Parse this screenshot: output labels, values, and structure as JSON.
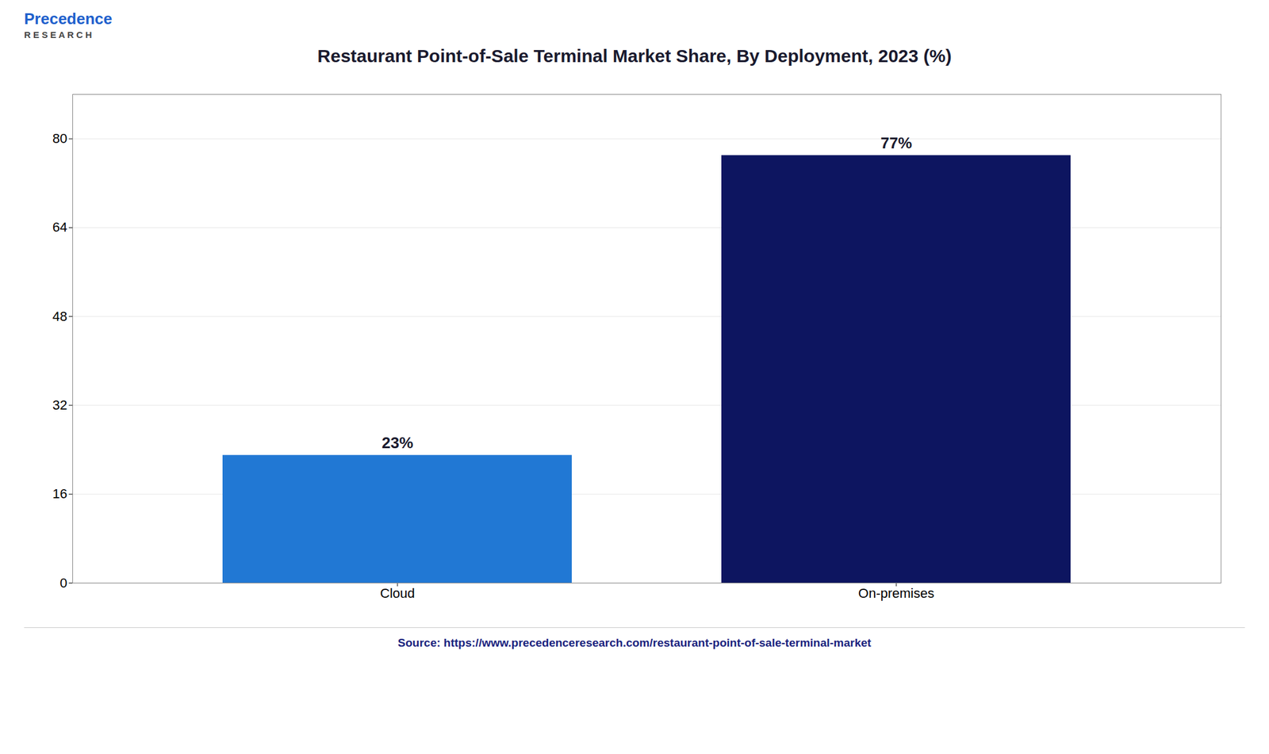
{
  "chart_data": {
    "type": "bar",
    "title": "Restaurant Point-of-Sale Terminal Market Share, By Deployment, 2023 (%)",
    "categories": [
      "Cloud",
      "On-premises"
    ],
    "values": [
      23,
      77
    ],
    "value_labels": [
      "23%",
      "77%"
    ],
    "colors": [
      "#2178D4",
      "#0D1560"
    ],
    "ylim": [
      0,
      88
    ],
    "yticks": [
      0,
      16,
      32,
      48,
      64,
      80
    ],
    "grid": true,
    "data_labels": true,
    "annotations": [
      "Precedence",
      "R E S E A R C H",
      "Source: https://www.precedenceresearch.com/restaurant-point-of-sale-terminal-market"
    ]
  }
}
